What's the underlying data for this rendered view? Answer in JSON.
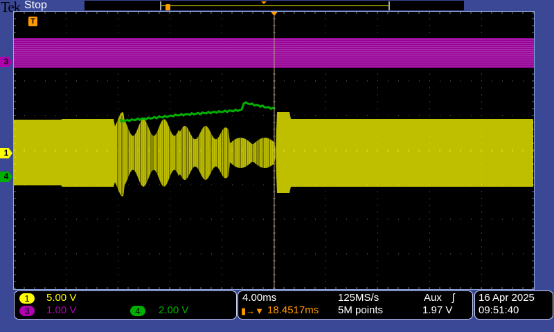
{
  "header": {
    "brand": "Tek",
    "status": "Stop"
  },
  "channels": [
    {
      "id": "1",
      "scale": "5.00 V",
      "color": "#ffff00"
    },
    {
      "id": "3",
      "scale": "1.00 V",
      "color": "#b000b0"
    },
    {
      "id": "4",
      "scale": "2.00 V",
      "color": "#00b000"
    }
  ],
  "trigger_marker": "T",
  "timebase": {
    "scale": "4.00ms",
    "sample_rate": "125MS/s",
    "record": "5M points",
    "trigger_position": "18.4517ms",
    "trigger_source": "Aux",
    "trigger_slope": "rising-edge-icon",
    "trigger_level": "1.97 V"
  },
  "datetime": {
    "date": "16 Apr 2025",
    "time": "09:51:40"
  },
  "colors": {
    "background": "#3b4896",
    "trigger": "#ff9900",
    "ch1": "#ffff00",
    "ch3": "#b000b0",
    "ch4": "#00b000"
  }
}
